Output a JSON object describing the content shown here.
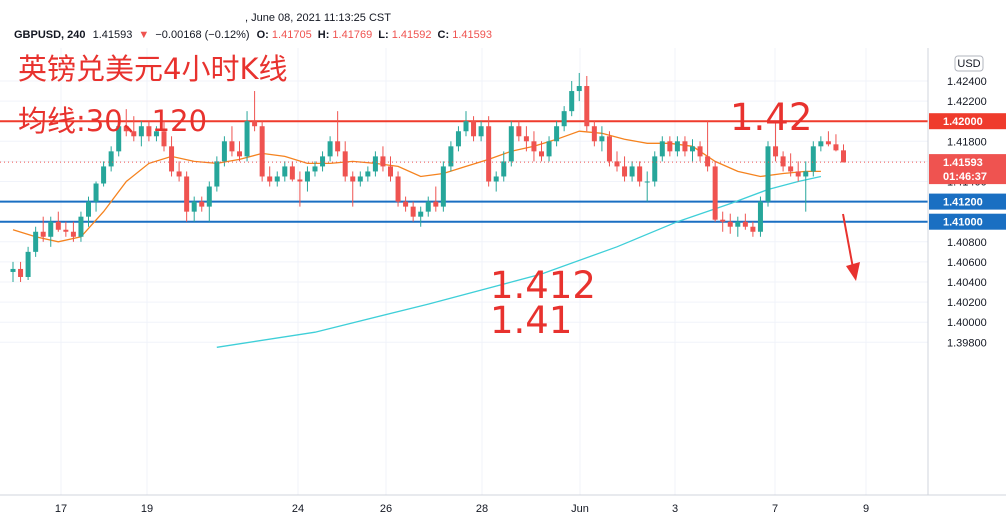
{
  "header": {
    "datetime": ", June 08, 2021 11:13:25 CST",
    "symbol": "GBPUSD, 240",
    "last": "1.41593",
    "change": "−0.00168 (−0.12%)",
    "o_label": "O:",
    "o_value": "1.41705",
    "h_label": "H:",
    "h_value": "1.41769",
    "l_label": "L:",
    "l_value": "1.41592",
    "c_label": "C:",
    "c_value": "1.41593"
  },
  "annotations": {
    "title": "英镑兑美元4小时K线",
    "ma_note": "均线:30、120",
    "level_142": "1.42",
    "level_1412": "1.412",
    "level_141": "1.41"
  },
  "currency_label": "USD",
  "price_tag": {
    "price": "1.41593",
    "countdown": "01:46:37"
  },
  "colors": {
    "up": "#26a69a",
    "down": "#ef5350",
    "ma30": "#f5831f",
    "ma120": "#3fcfd8",
    "red_line": "#ef3b2c",
    "blue_line": "#1a6fc2",
    "annotation": "#e8322e"
  },
  "chart_data": {
    "type": "candlestick",
    "symbol": "GBPUSD",
    "timeframe": "240",
    "y_ticks": [
      "1.42400",
      "1.42200",
      "1.42000",
      "1.41800",
      "1.41600",
      "1.41400",
      "1.41200",
      "1.41000",
      "1.40800",
      "1.40600",
      "1.40400",
      "1.40200",
      "1.40000",
      "1.39800"
    ],
    "x_ticks": [
      "17",
      "19",
      "24",
      "26",
      "28",
      "Jun",
      "3",
      "7",
      "9"
    ],
    "ylim": [
      1.397,
      1.426
    ],
    "highlighted_levels": [
      {
        "price": 1.42,
        "label": "1.42000",
        "color": "red"
      },
      {
        "price": 1.412,
        "label": "1.41200",
        "color": "blue"
      },
      {
        "price": 1.41,
        "label": "1.41000",
        "color": "blue"
      }
    ],
    "candles": [
      [
        1.405,
        1.406,
        1.404,
        1.4053
      ],
      [
        1.4053,
        1.406,
        1.404,
        1.4045
      ],
      [
        1.4045,
        1.4075,
        1.4042,
        1.407
      ],
      [
        1.407,
        1.4095,
        1.4065,
        1.409
      ],
      [
        1.409,
        1.4105,
        1.408,
        1.4085
      ],
      [
        1.4085,
        1.4105,
        1.4075,
        1.41
      ],
      [
        1.41,
        1.411,
        1.409,
        1.4092
      ],
      [
        1.4092,
        1.41,
        1.4085,
        1.409
      ],
      [
        1.409,
        1.41,
        1.408,
        1.4085
      ],
      [
        1.4085,
        1.411,
        1.408,
        1.4105
      ],
      [
        1.4105,
        1.4125,
        1.4095,
        1.412
      ],
      [
        1.412,
        1.414,
        1.411,
        1.4138
      ],
      [
        1.4138,
        1.416,
        1.4135,
        1.4155
      ],
      [
        1.4155,
        1.4175,
        1.415,
        1.417
      ],
      [
        1.417,
        1.42,
        1.4165,
        1.4195
      ],
      [
        1.4195,
        1.4212,
        1.4185,
        1.419
      ],
      [
        1.419,
        1.4205,
        1.418,
        1.4185
      ],
      [
        1.4185,
        1.42,
        1.4175,
        1.4195
      ],
      [
        1.4195,
        1.42,
        1.418,
        1.4185
      ],
      [
        1.4185,
        1.4195,
        1.418,
        1.419
      ],
      [
        1.419,
        1.42,
        1.417,
        1.4175
      ],
      [
        1.4175,
        1.4185,
        1.4145,
        1.415
      ],
      [
        1.415,
        1.416,
        1.414,
        1.4145
      ],
      [
        1.4145,
        1.415,
        1.41,
        1.411
      ],
      [
        1.411,
        1.4125,
        1.41,
        1.412
      ],
      [
        1.412,
        1.4125,
        1.411,
        1.4115
      ],
      [
        1.4115,
        1.414,
        1.41,
        1.4135
      ],
      [
        1.4135,
        1.4165,
        1.413,
        1.416
      ],
      [
        1.416,
        1.4185,
        1.4155,
        1.418
      ],
      [
        1.418,
        1.4195,
        1.4165,
        1.417
      ],
      [
        1.417,
        1.418,
        1.416,
        1.4165
      ],
      [
        1.4165,
        1.421,
        1.416,
        1.42
      ],
      [
        1.42,
        1.423,
        1.419,
        1.4195
      ],
      [
        1.4195,
        1.42,
        1.414,
        1.4145
      ],
      [
        1.4145,
        1.4155,
        1.4135,
        1.414
      ],
      [
        1.414,
        1.415,
        1.4135,
        1.4145
      ],
      [
        1.4145,
        1.416,
        1.414,
        1.4155
      ],
      [
        1.4155,
        1.416,
        1.414,
        1.4142
      ],
      [
        1.4142,
        1.415,
        1.4115,
        1.414
      ],
      [
        1.414,
        1.4155,
        1.413,
        1.415
      ],
      [
        1.415,
        1.416,
        1.4145,
        1.4155
      ],
      [
        1.4155,
        1.417,
        1.415,
        1.4165
      ],
      [
        1.4165,
        1.4185,
        1.416,
        1.418
      ],
      [
        1.418,
        1.421,
        1.4165,
        1.417
      ],
      [
        1.417,
        1.418,
        1.414,
        1.4145
      ],
      [
        1.4145,
        1.415,
        1.4115,
        1.414
      ],
      [
        1.414,
        1.415,
        1.4135,
        1.4145
      ],
      [
        1.4145,
        1.4155,
        1.414,
        1.415
      ],
      [
        1.415,
        1.417,
        1.4145,
        1.4165
      ],
      [
        1.4165,
        1.4175,
        1.415,
        1.4155
      ],
      [
        1.4155,
        1.4165,
        1.414,
        1.4145
      ],
      [
        1.4145,
        1.415,
        1.4115,
        1.412
      ],
      [
        1.412,
        1.4125,
        1.411,
        1.4115
      ],
      [
        1.4115,
        1.412,
        1.41,
        1.4105
      ],
      [
        1.4105,
        1.4115,
        1.4095,
        1.411
      ],
      [
        1.411,
        1.4125,
        1.4105,
        1.412
      ],
      [
        1.412,
        1.4135,
        1.411,
        1.4115
      ],
      [
        1.4115,
        1.416,
        1.411,
        1.4155
      ],
      [
        1.4155,
        1.418,
        1.415,
        1.4175
      ],
      [
        1.4175,
        1.4195,
        1.417,
        1.419
      ],
      [
        1.419,
        1.421,
        1.4185,
        1.42
      ],
      [
        1.42,
        1.4205,
        1.418,
        1.4185
      ],
      [
        1.4185,
        1.42,
        1.418,
        1.4195
      ],
      [
        1.4195,
        1.4205,
        1.4135,
        1.414
      ],
      [
        1.414,
        1.415,
        1.413,
        1.4145
      ],
      [
        1.4145,
        1.417,
        1.414,
        1.416
      ],
      [
        1.416,
        1.42,
        1.4155,
        1.4195
      ],
      [
        1.4195,
        1.42,
        1.418,
        1.4185
      ],
      [
        1.4185,
        1.4195,
        1.417,
        1.418
      ],
      [
        1.418,
        1.419,
        1.416,
        1.417
      ],
      [
        1.417,
        1.418,
        1.416,
        1.4165
      ],
      [
        1.4165,
        1.4185,
        1.416,
        1.418
      ],
      [
        1.418,
        1.42,
        1.4175,
        1.4195
      ],
      [
        1.4195,
        1.4215,
        1.419,
        1.421
      ],
      [
        1.421,
        1.424,
        1.4205,
        1.423
      ],
      [
        1.423,
        1.4248,
        1.422,
        1.4235
      ],
      [
        1.4235,
        1.4245,
        1.419,
        1.4195
      ],
      [
        1.4195,
        1.42,
        1.4175,
        1.418
      ],
      [
        1.418,
        1.4195,
        1.417,
        1.4185
      ],
      [
        1.4185,
        1.419,
        1.4155,
        1.416
      ],
      [
        1.416,
        1.417,
        1.415,
        1.4155
      ],
      [
        1.4155,
        1.4165,
        1.414,
        1.4145
      ],
      [
        1.4145,
        1.416,
        1.414,
        1.4155
      ],
      [
        1.4155,
        1.416,
        1.4135,
        1.414
      ],
      [
        1.414,
        1.415,
        1.412,
        1.414
      ],
      [
        1.414,
        1.417,
        1.4135,
        1.4165
      ],
      [
        1.4165,
        1.4185,
        1.416,
        1.418
      ],
      [
        1.418,
        1.4185,
        1.4165,
        1.417
      ],
      [
        1.417,
        1.4185,
        1.4165,
        1.418
      ],
      [
        1.418,
        1.4185,
        1.4165,
        1.417
      ],
      [
        1.417,
        1.4182,
        1.416,
        1.4175
      ],
      [
        1.4175,
        1.418,
        1.416,
        1.4165
      ],
      [
        1.4165,
        1.42,
        1.415,
        1.4155
      ],
      [
        1.4155,
        1.416,
        1.41,
        1.4102
      ],
      [
        1.4102,
        1.411,
        1.409,
        1.41
      ],
      [
        1.41,
        1.4108,
        1.4088,
        1.4095
      ],
      [
        1.4095,
        1.4105,
        1.4085,
        1.41
      ],
      [
        1.41,
        1.4108,
        1.4092,
        1.4095
      ],
      [
        1.4095,
        1.41,
        1.4085,
        1.409
      ],
      [
        1.409,
        1.4125,
        1.4085,
        1.412
      ],
      [
        1.412,
        1.418,
        1.4115,
        1.4175
      ],
      [
        1.4175,
        1.42,
        1.416,
        1.4165
      ],
      [
        1.4165,
        1.417,
        1.415,
        1.4155
      ],
      [
        1.4155,
        1.4168,
        1.4145,
        1.415
      ],
      [
        1.415,
        1.416,
        1.414,
        1.4145
      ],
      [
        1.4145,
        1.416,
        1.411,
        1.415
      ],
      [
        1.415,
        1.418,
        1.4145,
        1.4175
      ],
      [
        1.4175,
        1.4185,
        1.417,
        1.418
      ],
      [
        1.418,
        1.419,
        1.4175,
        1.4177
      ],
      [
        1.4177,
        1.4187,
        1.417,
        1.4171
      ],
      [
        1.4171,
        1.4177,
        1.4159,
        1.4159
      ]
    ],
    "ma30": [
      [
        0,
        1.4092
      ],
      [
        3,
        1.4085
      ],
      [
        6,
        1.408
      ],
      [
        9,
        1.4085
      ],
      [
        12,
        1.411
      ],
      [
        15,
        1.414
      ],
      [
        18,
        1.4158
      ],
      [
        21,
        1.4165
      ],
      [
        24,
        1.416
      ],
      [
        27,
        1.4158
      ],
      [
        30,
        1.4162
      ],
      [
        33,
        1.4168
      ],
      [
        36,
        1.4165
      ],
      [
        39,
        1.4158
      ],
      [
        42,
        1.4158
      ],
      [
        45,
        1.416
      ],
      [
        48,
        1.4158
      ],
      [
        51,
        1.4155
      ],
      [
        54,
        1.4145
      ],
      [
        57,
        1.4148
      ],
      [
        60,
        1.4155
      ],
      [
        63,
        1.4162
      ],
      [
        66,
        1.417
      ],
      [
        69,
        1.4175
      ],
      [
        72,
        1.4182
      ],
      [
        75,
        1.419
      ],
      [
        78,
        1.4188
      ],
      [
        81,
        1.4182
      ],
      [
        84,
        1.4178
      ],
      [
        87,
        1.4178
      ],
      [
        90,
        1.4175
      ],
      [
        93,
        1.416
      ],
      [
        96,
        1.415
      ],
      [
        99,
        1.4145
      ],
      [
        102,
        1.4148
      ],
      [
        105,
        1.415
      ],
      [
        107,
        1.415
      ]
    ],
    "ma120": [
      [
        27,
        1.3975
      ],
      [
        40,
        1.399
      ],
      [
        55,
        1.4018
      ],
      [
        70,
        1.4048
      ],
      [
        80,
        1.4075
      ],
      [
        88,
        1.41
      ],
      [
        95,
        1.4118
      ],
      [
        100,
        1.4132
      ],
      [
        104,
        1.414
      ],
      [
        107,
        1.4145
      ]
    ]
  }
}
